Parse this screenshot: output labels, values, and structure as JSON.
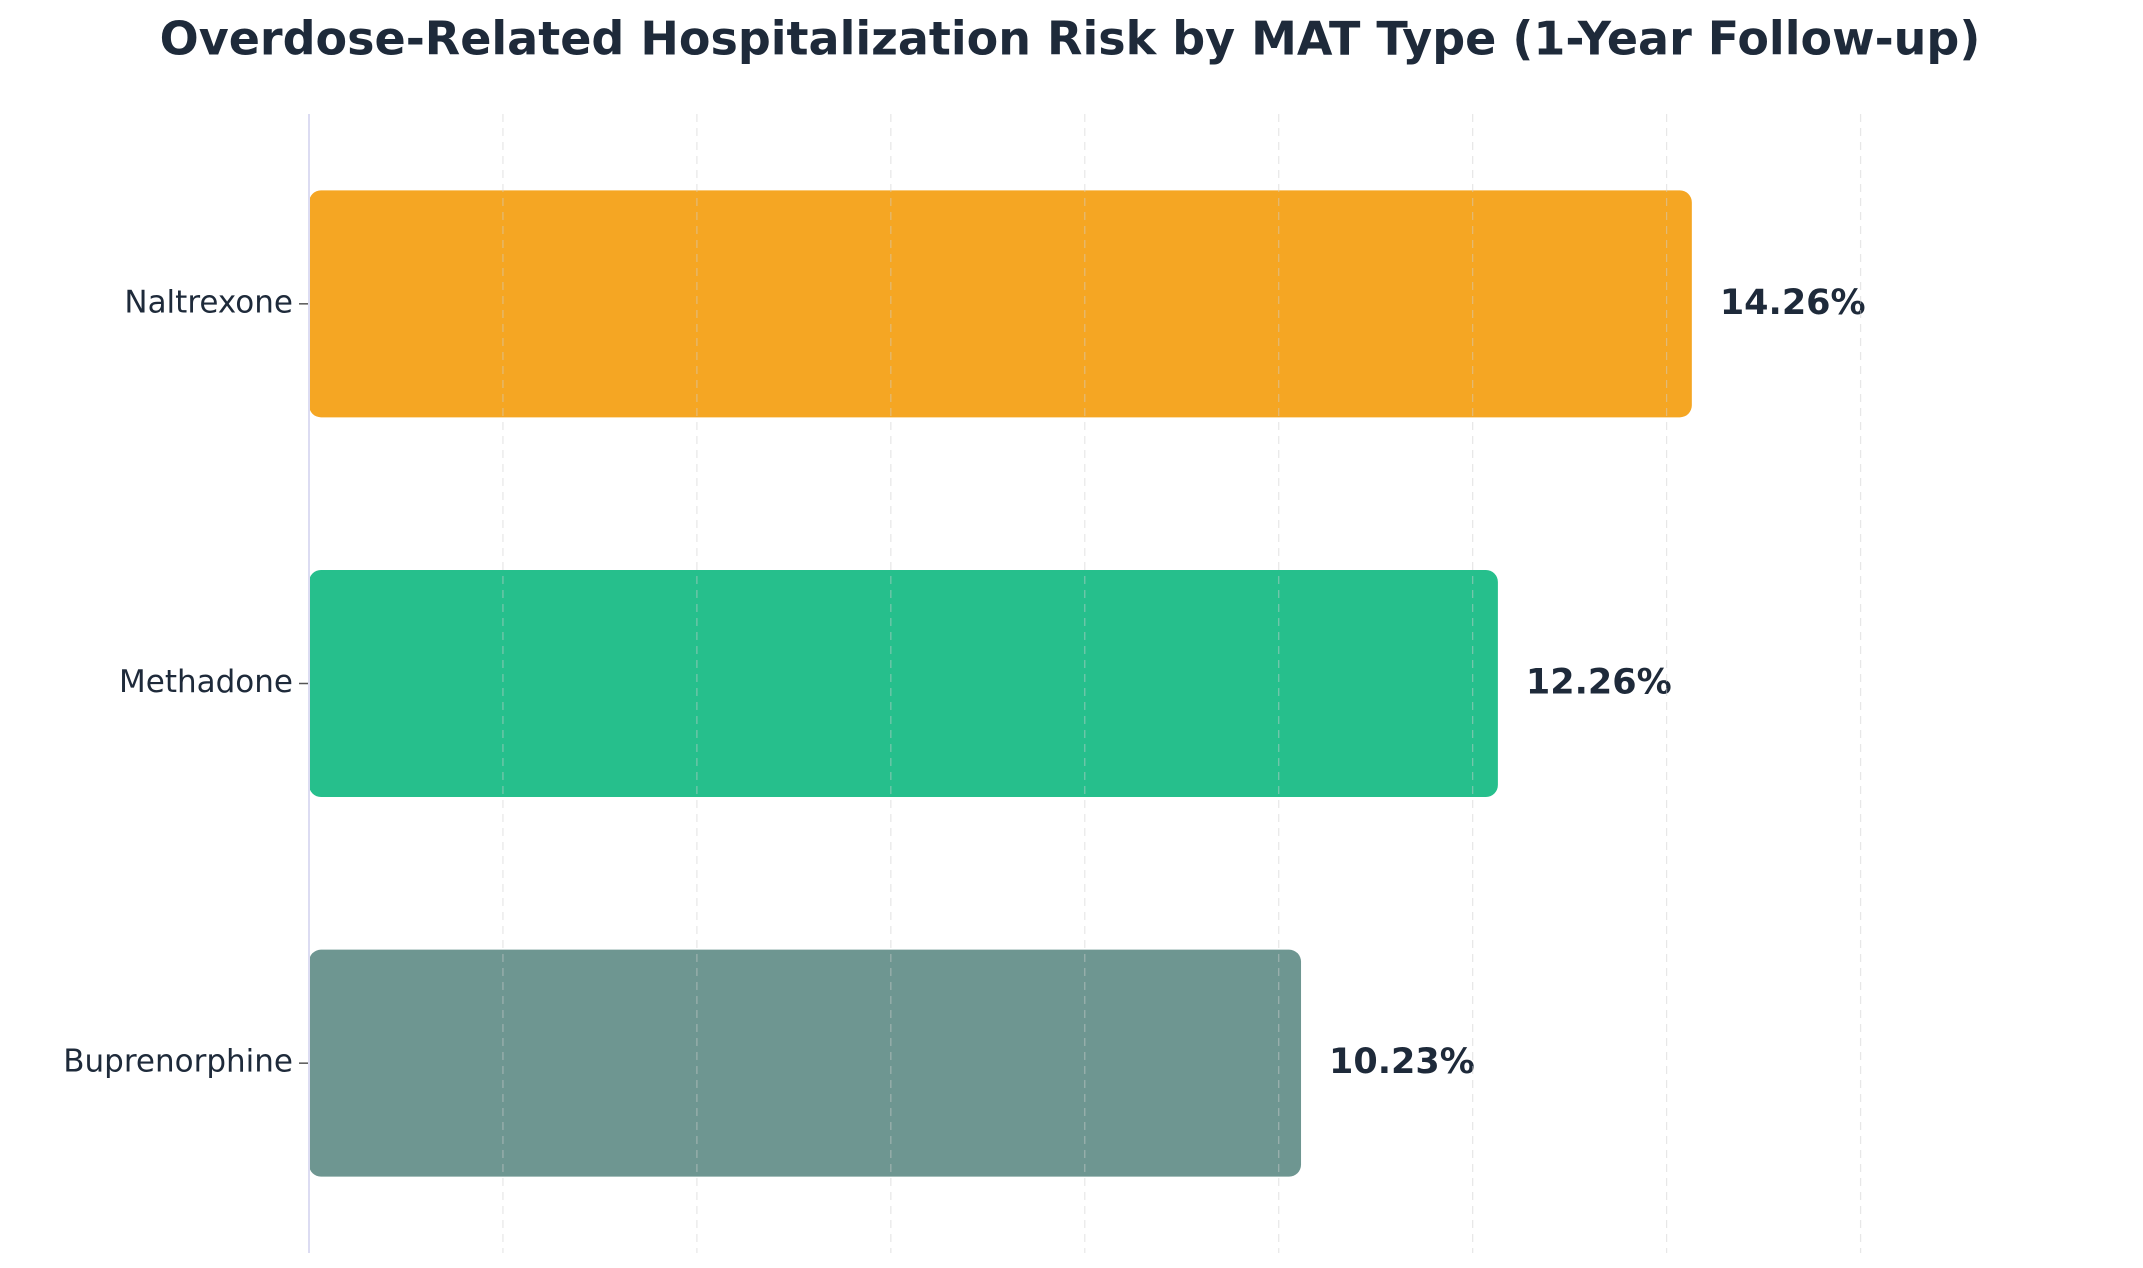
{
  "chart_data": {
    "type": "barh",
    "title": "Overdose-Related Hospitalization Risk by MAT Type (1-Year Follow-up)",
    "categories": [
      "Naltrexone",
      "Methadone",
      "Buprenorphine"
    ],
    "values": [
      14.26,
      12.26,
      10.23
    ],
    "value_labels": [
      "14.26%",
      "12.26%",
      "10.23%"
    ],
    "colors": [
      "#f5a623",
      "#26bf8c",
      "#6e9691"
    ],
    "xlim": [
      0,
      18.5
    ],
    "xticks": [
      0,
      2,
      4,
      6,
      8,
      10,
      12,
      14,
      16
    ],
    "grid": true
  }
}
